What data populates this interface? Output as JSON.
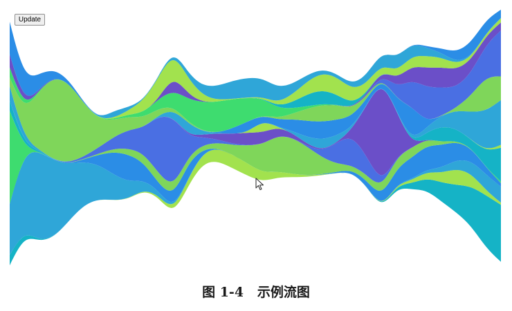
{
  "update_button": {
    "label": "Update"
  },
  "caption": "图 1-4   示例流图",
  "cursor_icon": "arrow-pointer-icon",
  "palette": [
    "#4a6fe3",
    "#15b3c6",
    "#2b8de6",
    "#3edc6f",
    "#a2e24e",
    "#7fd65a",
    "#6b4fc8",
    "#2fa6d8"
  ],
  "streamgraph": {
    "layers": 20,
    "samples": 34,
    "offset": "wiggle",
    "curve": "basis"
  }
}
